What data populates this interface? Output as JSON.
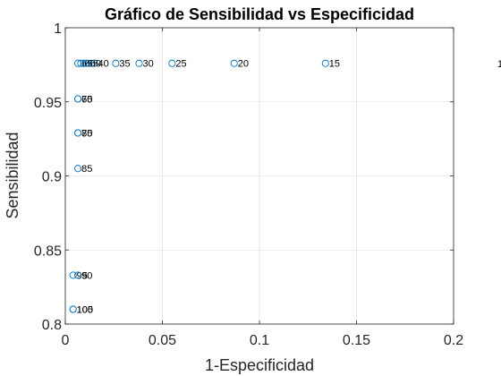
{
  "chart_data": {
    "type": "scatter",
    "title": "Gráfico de Sensibilidad vs Especificidad",
    "xlabel": "1-Especificidad",
    "ylabel": "Sensibilidad",
    "xlim": [
      0,
      0.2
    ],
    "ylim": [
      0.8,
      1
    ],
    "xticks": [
      0,
      0.05,
      0.1,
      0.15,
      0.2
    ],
    "xtick_labels": [
      "0",
      "0.05",
      "0.1",
      "0.15",
      "0.2"
    ],
    "yticks": [
      0.8,
      0.85,
      0.9,
      0.95,
      1
    ],
    "ytick_labels": [
      "0.8",
      "0.85",
      "0.9",
      "0.95",
      "1"
    ],
    "grid": true,
    "marker_color": "#0072bd",
    "points": [
      {
        "x": 0.0065,
        "y": 0.976,
        "label": "65"
      },
      {
        "x": 0.008,
        "y": 0.976,
        "label": "60"
      },
      {
        "x": 0.0095,
        "y": 0.976,
        "label": "55"
      },
      {
        "x": 0.011,
        "y": 0.976,
        "label": "50"
      },
      {
        "x": 0.015,
        "y": 0.976,
        "label": "40"
      },
      {
        "x": 0.026,
        "y": 0.976,
        "label": "35"
      },
      {
        "x": 0.038,
        "y": 0.976,
        "label": "30"
      },
      {
        "x": 0.055,
        "y": 0.976,
        "label": "25"
      },
      {
        "x": 0.087,
        "y": 0.976,
        "label": "20"
      },
      {
        "x": 0.134,
        "y": 0.976,
        "label": "15"
      },
      {
        "x": 0.0065,
        "y": 0.952,
        "label": "70"
      },
      {
        "x": 0.0065,
        "y": 0.952,
        "label": "65"
      },
      {
        "x": 0.0065,
        "y": 0.929,
        "label": "80"
      },
      {
        "x": 0.0065,
        "y": 0.929,
        "label": "75"
      },
      {
        "x": 0.0065,
        "y": 0.905,
        "label": "85"
      },
      {
        "x": 0.004,
        "y": 0.833,
        "label": "95"
      },
      {
        "x": 0.0065,
        "y": 0.833,
        "label": "90"
      },
      {
        "x": 0.004,
        "y": 0.81,
        "label": "105"
      },
      {
        "x": 0.004,
        "y": 0.81,
        "label": "100"
      }
    ],
    "offscale_label": "1"
  }
}
